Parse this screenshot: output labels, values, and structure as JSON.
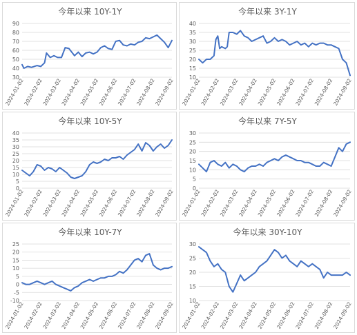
{
  "line_color": "#4472c4",
  "chart_data": [
    {
      "type": "line",
      "title": "今年以来 10Y-1Y",
      "x_labels": [
        "2024-01-02",
        "2024-02-02",
        "2024-03-02",
        "2024-04-02",
        "2024-05-02",
        "2024-06-02",
        "2024-07-02",
        "2024-08-02",
        "2024-09-02"
      ],
      "ylim": [
        30,
        90
      ],
      "yticks": [
        30,
        40,
        50,
        60,
        70,
        80,
        90
      ],
      "grid": true,
      "x": [
        0,
        0.1,
        0.3,
        0.5,
        0.8,
        1.0,
        1.2,
        1.3,
        1.5,
        1.7,
        1.9,
        2.1,
        2.3,
        2.5,
        2.8,
        3.0,
        3.2,
        3.4,
        3.6,
        3.8,
        4.0,
        4.2,
        4.4,
        4.6,
        4.8,
        5.0,
        5.2,
        5.4,
        5.6,
        5.8,
        6.0,
        6.2,
        6.4,
        6.6,
        6.8,
        7.0,
        7.2,
        7.4,
        7.6,
        7.8,
        8.0
      ],
      "values": [
        44,
        40,
        42,
        41,
        43,
        42,
        46,
        57,
        52,
        54,
        52,
        52,
        63,
        62,
        54,
        58,
        53,
        57,
        58,
        56,
        58,
        63,
        65,
        62,
        61,
        70,
        71,
        66,
        65,
        67,
        66,
        69,
        70,
        74,
        73,
        75,
        77,
        73,
        69,
        63,
        71
      ]
    },
    {
      "type": "line",
      "title": "今年以来 3Y-1Y",
      "x_labels": [
        "2024-01-02",
        "2024-02-02",
        "2024-03-02",
        "2024-04-02",
        "2024-05-02",
        "2024-06-02",
        "2024-07-02",
        "2024-08-02",
        "2024-09-02"
      ],
      "ylim": [
        10,
        40
      ],
      "yticks": [
        10,
        15,
        20,
        25,
        30,
        35,
        40
      ],
      "grid": true,
      "x": [
        0,
        0.2,
        0.4,
        0.6,
        0.8,
        0.9,
        1.0,
        1.1,
        1.2,
        1.4,
        1.5,
        1.6,
        1.8,
        2.0,
        2.2,
        2.4,
        2.6,
        2.8,
        3.0,
        3.2,
        3.4,
        3.6,
        3.8,
        4.0,
        4.2,
        4.4,
        4.6,
        4.8,
        5.0,
        5.2,
        5.4,
        5.6,
        5.8,
        6.0,
        6.2,
        6.4,
        6.6,
        6.8,
        7.0,
        7.2,
        7.4,
        7.6,
        7.8,
        8.0
      ],
      "values": [
        20,
        18,
        20,
        20,
        22,
        31,
        33,
        26,
        27,
        26,
        27,
        35,
        35,
        34,
        36,
        33,
        32,
        30,
        31,
        32,
        33,
        29,
        30,
        32,
        30,
        31,
        30,
        28,
        29,
        30,
        28,
        29,
        27,
        29,
        28,
        29,
        29,
        28,
        28,
        27,
        26,
        20,
        18,
        11
      ]
    },
    {
      "type": "line",
      "title": "今年以来 10Y-5Y",
      "x_labels": [
        "2024-01-02",
        "2024-02-02",
        "2024-03-02",
        "2024-04-02",
        "2024-05-02",
        "2024-06-02",
        "2024-07-02",
        "2024-08-02",
        "2024-09-02"
      ],
      "ylim": [
        0,
        40
      ],
      "yticks": [
        0,
        5,
        10,
        15,
        20,
        25,
        30,
        35,
        40
      ],
      "grid": true,
      "x": [
        0,
        0.2,
        0.4,
        0.6,
        0.8,
        1.0,
        1.2,
        1.4,
        1.6,
        1.8,
        2.0,
        2.2,
        2.4,
        2.6,
        2.8,
        3.0,
        3.2,
        3.4,
        3.6,
        3.8,
        4.0,
        4.2,
        4.4,
        4.6,
        4.8,
        5.0,
        5.2,
        5.4,
        5.6,
        5.8,
        6.0,
        6.2,
        6.4,
        6.6,
        6.8,
        7.0,
        7.2,
        7.4,
        7.6,
        7.8,
        8.0
      ],
      "values": [
        13,
        11,
        9,
        12,
        17,
        16,
        13,
        15,
        14,
        12,
        15,
        13,
        11,
        8,
        7,
        8,
        9,
        12,
        17,
        19,
        18,
        19,
        21,
        20,
        22,
        22,
        23,
        21,
        24,
        26,
        28,
        32,
        27,
        33,
        31,
        27,
        30,
        32,
        29,
        31,
        35
      ]
    },
    {
      "type": "line",
      "title": "今年以来 7Y-5Y",
      "x_labels": [
        "2024-01-02",
        "2024-02-02",
        "2024-03-02",
        "2024-04-02",
        "2024-05-02",
        "2024-06-02",
        "2024-07-02",
        "2024-08-02",
        "2024-09-02"
      ],
      "ylim": [
        0,
        30
      ],
      "yticks": [
        0,
        5,
        10,
        15,
        20,
        25,
        30
      ],
      "grid": true,
      "x": [
        0,
        0.2,
        0.4,
        0.6,
        0.8,
        1.0,
        1.2,
        1.4,
        1.6,
        1.8,
        2.0,
        2.2,
        2.4,
        2.6,
        2.8,
        3.0,
        3.2,
        3.4,
        3.6,
        3.8,
        4.0,
        4.2,
        4.4,
        4.6,
        4.8,
        5.0,
        5.2,
        5.4,
        5.6,
        5.8,
        6.0,
        6.2,
        6.4,
        6.6,
        6.8,
        7.0,
        7.2,
        7.4,
        7.6,
        7.8,
        8.0
      ],
      "values": [
        13,
        11,
        9,
        14,
        15,
        13,
        12,
        14,
        11,
        13,
        12,
        10,
        9,
        11,
        12,
        12,
        13,
        12,
        14,
        15,
        16,
        15,
        17,
        18,
        17,
        16,
        15,
        15,
        14,
        14,
        13,
        12,
        12,
        14,
        13,
        12,
        17,
        22,
        20,
        24,
        25
      ]
    },
    {
      "type": "line",
      "title": "今年以来 10Y-7Y",
      "x_labels": [
        "2024-01-02",
        "2024-02-02",
        "2024-03-02",
        "2024-04-02",
        "2024-05-02",
        "2024-06-02",
        "2024-07-02",
        "2024-08-02",
        "2024-09-02"
      ],
      "ylim": [
        -10,
        25
      ],
      "yticks": [
        -10,
        -5,
        0,
        5,
        10,
        15,
        20,
        25
      ],
      "grid": true,
      "x": [
        0,
        0.2,
        0.4,
        0.6,
        0.8,
        1.0,
        1.2,
        1.4,
        1.6,
        1.8,
        2.0,
        2.2,
        2.4,
        2.6,
        2.8,
        3.0,
        3.2,
        3.4,
        3.6,
        3.8,
        4.0,
        4.2,
        4.4,
        4.6,
        4.8,
        5.0,
        5.2,
        5.4,
        5.6,
        5.8,
        6.0,
        6.2,
        6.4,
        6.6,
        6.8,
        7.0,
        7.2,
        7.4,
        7.6,
        7.8,
        8.0
      ],
      "values": [
        1,
        0,
        0,
        1,
        2,
        1,
        0,
        1,
        2,
        0,
        -1,
        -2,
        -3,
        -4,
        -2,
        -1,
        1,
        2,
        3,
        2,
        3,
        4,
        4,
        5,
        5,
        6,
        8,
        7,
        9,
        12,
        15,
        16,
        14,
        18,
        19,
        12,
        10,
        9,
        10,
        10,
        11
      ]
    },
    {
      "type": "line",
      "title": "今年以来 30Y-10Y",
      "x_labels": [
        "2024-01-02",
        "2024-02-02",
        "2024-03-02",
        "2024-04-02",
        "2024-05-02",
        "2024-06-02",
        "2024-07-02",
        "2024-08-02",
        "2024-09-02"
      ],
      "ylim": [
        10,
        30
      ],
      "yticks": [
        10,
        15,
        20,
        25,
        30
      ],
      "grid": true,
      "x": [
        0,
        0.2,
        0.4,
        0.6,
        0.8,
        1.0,
        1.2,
        1.4,
        1.6,
        1.8,
        2.0,
        2.2,
        2.4,
        2.6,
        2.8,
        3.0,
        3.2,
        3.4,
        3.6,
        3.8,
        4.0,
        4.2,
        4.4,
        4.6,
        4.8,
        5.0,
        5.2,
        5.4,
        5.6,
        5.8,
        6.0,
        6.2,
        6.4,
        6.6,
        6.8,
        7.0,
        7.2,
        7.4,
        7.6,
        7.8,
        8.0
      ],
      "values": [
        29,
        28,
        27,
        24,
        22,
        23,
        21,
        20,
        15,
        13,
        16,
        19,
        17,
        18,
        19,
        20,
        22,
        23,
        24,
        26,
        28,
        27,
        25,
        26,
        24,
        23,
        22,
        24,
        23,
        22,
        23,
        22,
        21,
        18,
        20,
        19,
        19,
        19,
        19,
        20,
        19
      ]
    }
  ]
}
